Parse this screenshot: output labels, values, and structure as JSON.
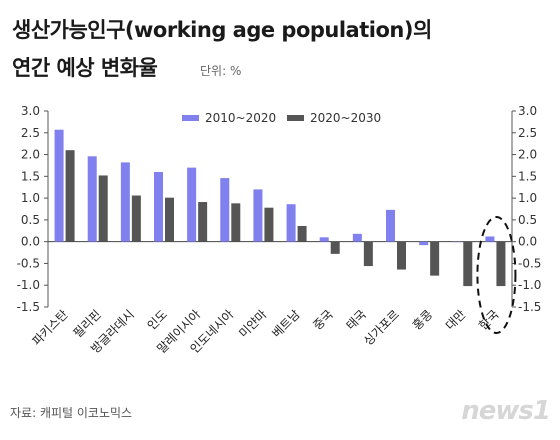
{
  "header": {
    "title_line1": "생산가능인구(working age population)의",
    "title_line2": "연간 예상 변화율",
    "unit": "단위: %"
  },
  "footer": {
    "source": "자료: 캐피털 이코노믹스",
    "logo_text": "news1"
  },
  "colors": {
    "series1": "#8080ee",
    "series2": "#555555",
    "highlight_ellipse": "#111111"
  },
  "chart_data": {
    "type": "bar",
    "title": "생산가능인구(working age population)의 연간 예상 변화율",
    "unit": "%",
    "categories": [
      "파키스탄",
      "필리핀",
      "방글라데시",
      "인도",
      "말레이시아",
      "인도네시아",
      "미얀마",
      "베트남",
      "중국",
      "태국",
      "싱가포르",
      "홍콩",
      "대만",
      "한국"
    ],
    "series": [
      {
        "name": "2010~2020",
        "values": [
          2.57,
          1.96,
          1.82,
          1.6,
          1.7,
          1.46,
          1.2,
          0.86,
          0.1,
          0.18,
          0.73,
          -0.08,
          0.0,
          0.12
        ]
      },
      {
        "name": "2020~2030",
        "values": [
          2.1,
          1.52,
          1.06,
          1.01,
          0.91,
          0.88,
          0.78,
          0.36,
          -0.28,
          -0.56,
          -0.64,
          -0.78,
          -1.02,
          -1.02
        ]
      }
    ],
    "ylim": [
      -1.5,
      3.0
    ],
    "yticks": [
      "3.0",
      "2.5",
      "2.0",
      "1.5",
      "1.0",
      "0.5",
      "0.0",
      "-0.5",
      "-1.0",
      "-1.5"
    ],
    "ytick_values": [
      3.0,
      2.5,
      2.0,
      1.5,
      1.0,
      0.5,
      0.0,
      -0.5,
      -1.0,
      -1.5
    ],
    "secondary_yaxis": true,
    "grid": false,
    "legend_position": "top-center",
    "highlight": "한국"
  }
}
